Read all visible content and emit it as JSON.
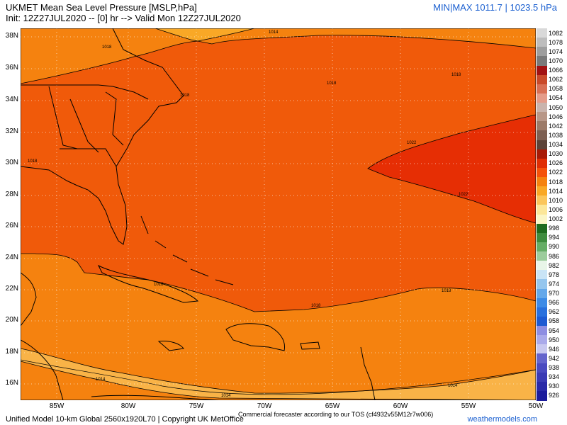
{
  "header": {
    "title": "UKMET Mean Sea Level Pressure [MSLP,hPa]",
    "init": "Init: 12Z27JUL2020 -- [0] hr --> Valid Mon 12Z27JUL2020",
    "minmax": "MIN|MAX 1011.7 | 1023.5 hPa"
  },
  "axes": {
    "lat_labels": [
      "38N",
      "36N",
      "34N",
      "32N",
      "30N",
      "28N",
      "26N",
      "24N",
      "22N",
      "20N",
      "18N",
      "16N"
    ],
    "lon_labels": [
      "85W",
      "80W",
      "75W",
      "70W",
      "65W",
      "60W",
      "55W",
      "50W"
    ]
  },
  "contours": {
    "labels": [
      "1014",
      "1018",
      "1018",
      "1018",
      "1018",
      "1022",
      "1022",
      "1018",
      "1018",
      "1018",
      "1014",
      "1014",
      "1014",
      "1018"
    ]
  },
  "legend": {
    "levels": [
      "1082",
      "1078",
      "1074",
      "1070",
      "1066",
      "1062",
      "1058",
      "1054",
      "1050",
      "1046",
      "1042",
      "1038",
      "1034",
      "1030",
      "1026",
      "1022",
      "1018",
      "1014",
      "1010",
      "1006",
      "1002",
      "998",
      "994",
      "990",
      "986",
      "982",
      "978",
      "974",
      "970",
      "966",
      "962",
      "958",
      "954",
      "950",
      "946",
      "942",
      "938",
      "934",
      "930",
      "926"
    ],
    "colors": [
      "#d9d9d9",
      "#bdbdbd",
      "#9e9e9e",
      "#7a7a7a",
      "#a31212",
      "#c94a2a",
      "#d87055",
      "#e49c8a",
      "#c9b4ad",
      "#b89788",
      "#9c7a68",
      "#7d6053",
      "#5b4338",
      "#a81a06",
      "#e02e04",
      "#f5520a",
      "#f5820f",
      "#f9a826",
      "#fbc65c",
      "#fce79a",
      "#fbf6c6",
      "#1e6b1e",
      "#3e8c3e",
      "#66ad66",
      "#9ccc9c",
      "#e8f5e8",
      "#c9e4f6",
      "#95c6ee",
      "#64a8ea",
      "#3d8be6",
      "#2870dd",
      "#1d5ad2",
      "#8e8ee2",
      "#aaaaea",
      "#c8c8f0",
      "#6464cc",
      "#4a4ac0",
      "#3a3ab4",
      "#2a2aa8",
      "#1c1c9c"
    ]
  },
  "footer": {
    "left": "Unified Model 10-km Global 2560x1920L70 | Copyright UK MetOffice",
    "mid_line1": "Commercial forecaster according to our TOS (cf4932v55M12r7w006)",
    "right": "weathermodels.com"
  }
}
